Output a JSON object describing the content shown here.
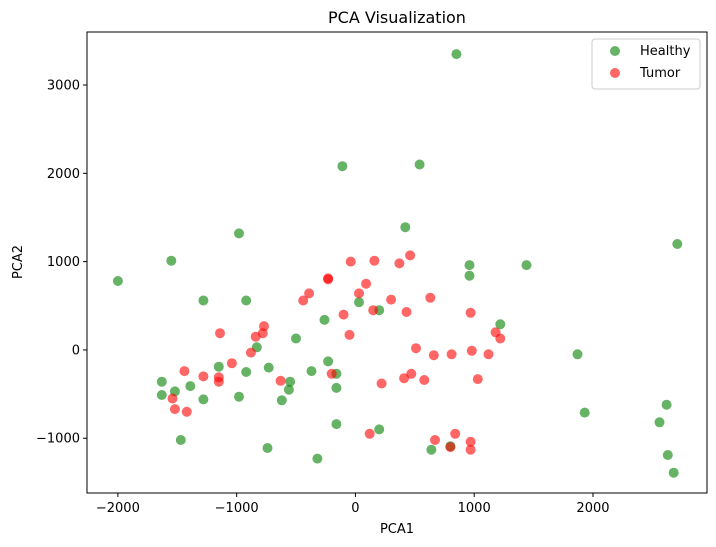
{
  "chart_data": {
    "type": "scatter",
    "title": "PCA Visualization",
    "xlabel": "PCA1",
    "ylabel": "PCA2",
    "xlim": [
      -2260,
      2960
    ],
    "ylim": [
      -1620,
      3600
    ],
    "xticks": [
      -2000,
      -1000,
      0,
      1000,
      2000
    ],
    "yticks": [
      -1000,
      0,
      1000,
      2000,
      3000
    ],
    "grid": false,
    "legend_position": "top-right",
    "series": [
      {
        "name": "Healthy",
        "color": "#008000",
        "points": [
          [
            -2000,
            780
          ],
          [
            -1550,
            1010
          ],
          [
            -980,
            1320
          ],
          [
            -920,
            560
          ],
          [
            -1280,
            560
          ],
          [
            -1630,
            -360
          ],
          [
            -1630,
            -510
          ],
          [
            -1520,
            -470
          ],
          [
            -1390,
            -410
          ],
          [
            -1470,
            -1020
          ],
          [
            -1280,
            -560
          ],
          [
            -1150,
            -190
          ],
          [
            -920,
            -250
          ],
          [
            -980,
            -530
          ],
          [
            -830,
            30
          ],
          [
            -730,
            -200
          ],
          [
            -740,
            -1110
          ],
          [
            -620,
            -570
          ],
          [
            -560,
            -450
          ],
          [
            -550,
            -360
          ],
          [
            -500,
            130
          ],
          [
            -370,
            -240
          ],
          [
            -260,
            340
          ],
          [
            -230,
            -130
          ],
          [
            -160,
            -270
          ],
          [
            -160,
            -430
          ],
          [
            -160,
            -840
          ],
          [
            -320,
            -1230
          ],
          [
            -110,
            2080
          ],
          [
            30,
            540
          ],
          [
            200,
            450
          ],
          [
            200,
            -900
          ],
          [
            540,
            2100
          ],
          [
            420,
            1390
          ],
          [
            960,
            960
          ],
          [
            960,
            840
          ],
          [
            1440,
            960
          ],
          [
            1220,
            290
          ],
          [
            850,
            3350
          ],
          [
            640,
            -1130
          ],
          [
            800,
            -1090
          ],
          [
            1870,
            -50
          ],
          [
            1930,
            -710
          ],
          [
            2560,
            -820
          ],
          [
            2620,
            -620
          ],
          [
            2630,
            -1190
          ],
          [
            2680,
            -1390
          ],
          [
            2710,
            1200
          ]
        ]
      },
      {
        "name": "Tumor",
        "color": "#ff0000",
        "points": [
          [
            -1540,
            -550
          ],
          [
            -1520,
            -670
          ],
          [
            -1440,
            -240
          ],
          [
            -1420,
            -700
          ],
          [
            -1280,
            -300
          ],
          [
            -1150,
            -310
          ],
          [
            -1150,
            -360
          ],
          [
            -1140,
            190
          ],
          [
            -1040,
            -150
          ],
          [
            -880,
            -30
          ],
          [
            -840,
            150
          ],
          [
            -780,
            190
          ],
          [
            -770,
            270
          ],
          [
            -630,
            -350
          ],
          [
            -440,
            560
          ],
          [
            -390,
            640
          ],
          [
            -230,
            810
          ],
          [
            -230,
            800
          ],
          [
            -200,
            -270
          ],
          [
            -100,
            400
          ],
          [
            -50,
            170
          ],
          [
            -40,
            1000
          ],
          [
            30,
            640
          ],
          [
            90,
            750
          ],
          [
            120,
            -950
          ],
          [
            150,
            450
          ],
          [
            160,
            1010
          ],
          [
            220,
            -380
          ],
          [
            300,
            570
          ],
          [
            370,
            980
          ],
          [
            410,
            -320
          ],
          [
            430,
            430
          ],
          [
            460,
            1070
          ],
          [
            470,
            -270
          ],
          [
            510,
            20
          ],
          [
            580,
            -340
          ],
          [
            630,
            590
          ],
          [
            660,
            -60
          ],
          [
            670,
            -1020
          ],
          [
            810,
            -50
          ],
          [
            840,
            -950
          ],
          [
            800,
            -1100
          ],
          [
            970,
            -1040
          ],
          [
            970,
            -1130
          ],
          [
            970,
            420
          ],
          [
            980,
            -10
          ],
          [
            1030,
            -330
          ],
          [
            1120,
            -50
          ],
          [
            1180,
            200
          ],
          [
            1220,
            130
          ]
        ]
      }
    ]
  }
}
